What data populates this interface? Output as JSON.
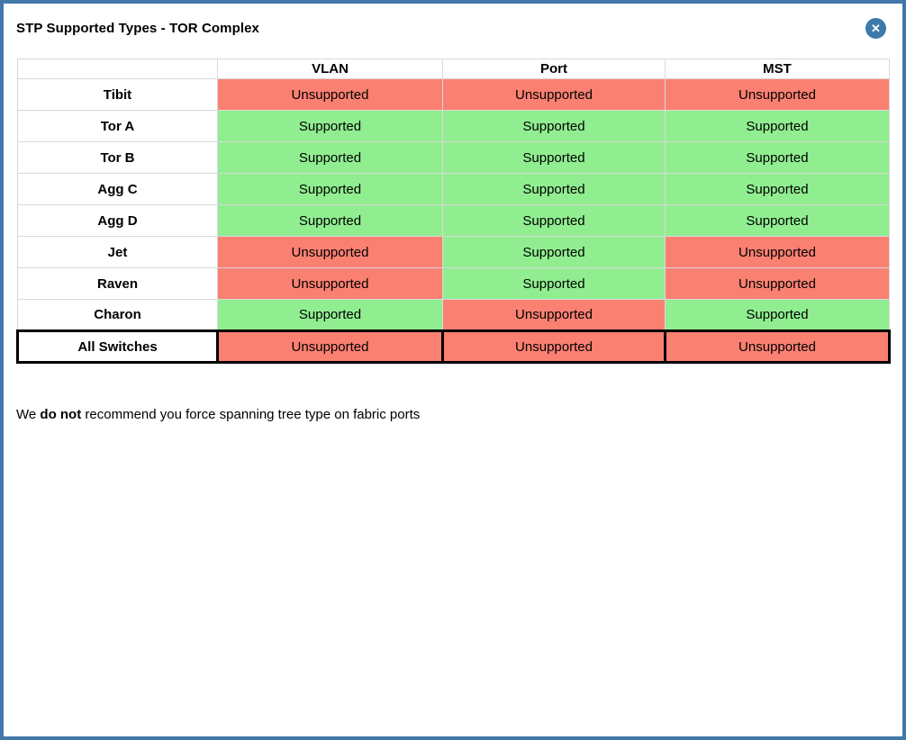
{
  "modal": {
    "title": "STP Supported Types - TOR Complex",
    "close_icon": "✕"
  },
  "table": {
    "columns": [
      "",
      "VLAN",
      "Port",
      "MST"
    ],
    "rows": [
      {
        "label": "Tibit",
        "values": [
          "Unsupported",
          "Unsupported",
          "Unsupported"
        ],
        "highlight": false
      },
      {
        "label": "Tor A",
        "values": [
          "Supported",
          "Supported",
          "Supported"
        ],
        "highlight": false
      },
      {
        "label": "Tor B",
        "values": [
          "Supported",
          "Supported",
          "Supported"
        ],
        "highlight": false
      },
      {
        "label": "Agg C",
        "values": [
          "Supported",
          "Supported",
          "Supported"
        ],
        "highlight": false
      },
      {
        "label": "Agg D",
        "values": [
          "Supported",
          "Supported",
          "Supported"
        ],
        "highlight": false
      },
      {
        "label": "Jet",
        "values": [
          "Unsupported",
          "Supported",
          "Unsupported"
        ],
        "highlight": false
      },
      {
        "label": "Raven",
        "values": [
          "Unsupported",
          "Supported",
          "Unsupported"
        ],
        "highlight": false
      },
      {
        "label": "Charon",
        "values": [
          "Supported",
          "Unsupported",
          "Supported"
        ],
        "highlight": false
      },
      {
        "label": "All Switches",
        "values": [
          "Unsupported",
          "Unsupported",
          "Unsupported"
        ],
        "highlight": true
      }
    ]
  },
  "note": {
    "prefix": "We ",
    "bold": "do not",
    "suffix": " recommend you force spanning tree type on fabric ports"
  },
  "colors": {
    "supported_bg": "#90EE90",
    "unsupported_bg": "#FA8072",
    "modal_border": "#4278A8",
    "close_button_bg": "#3C7AAC",
    "grid_line": "#D9D9D9"
  }
}
